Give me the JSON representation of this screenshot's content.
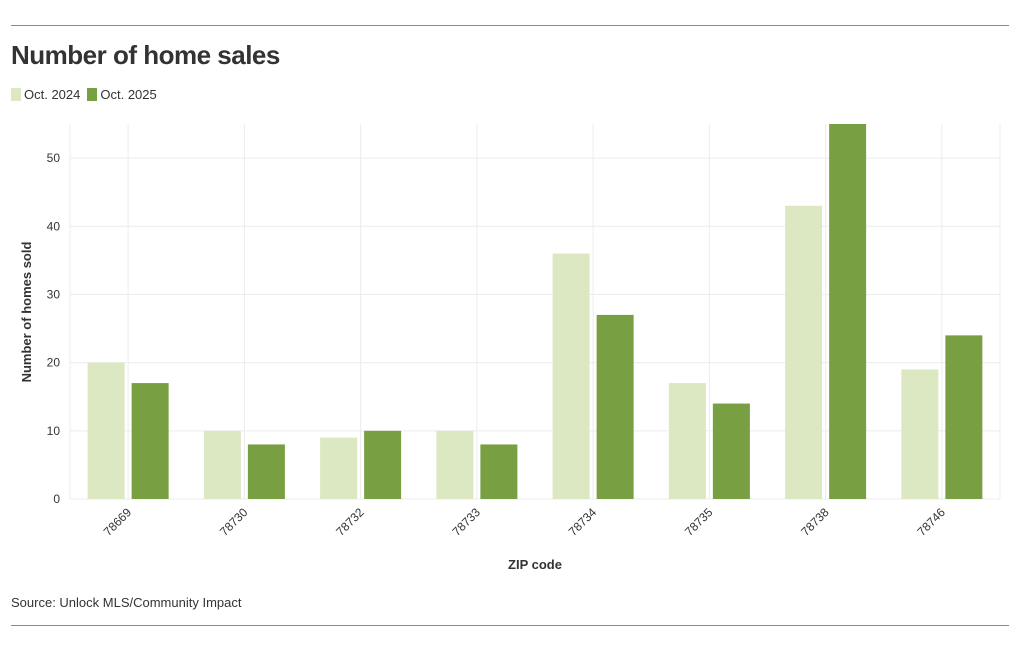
{
  "title": "Number of home sales",
  "legend": [
    {
      "label": "Oct. 2024",
      "color": "#dce8c2"
    },
    {
      "label": "Oct. 2025",
      "color": "#789f41"
    }
  ],
  "source": "Source: Unlock MLS/Community Impact",
  "chart_data": {
    "type": "bar",
    "title": "Number of home sales",
    "xlabel": "ZIP code",
    "ylabel": "Number of homes sold",
    "categories": [
      "78669",
      "78730",
      "78732",
      "78733",
      "78734",
      "78735",
      "78738",
      "78746"
    ],
    "series": [
      {
        "name": "Oct. 2024",
        "color": "#dce8c2",
        "values": [
          20,
          10,
          9,
          10,
          36,
          17,
          43,
          19
        ]
      },
      {
        "name": "Oct. 2025",
        "color": "#789f41",
        "values": [
          17,
          8,
          10,
          8,
          27,
          14,
          55,
          24
        ]
      }
    ],
    "ylim": [
      0,
      55
    ],
    "yticks": [
      0,
      10,
      20,
      30,
      40,
      50
    ],
    "grid": true,
    "legend_position": "top-left"
  }
}
